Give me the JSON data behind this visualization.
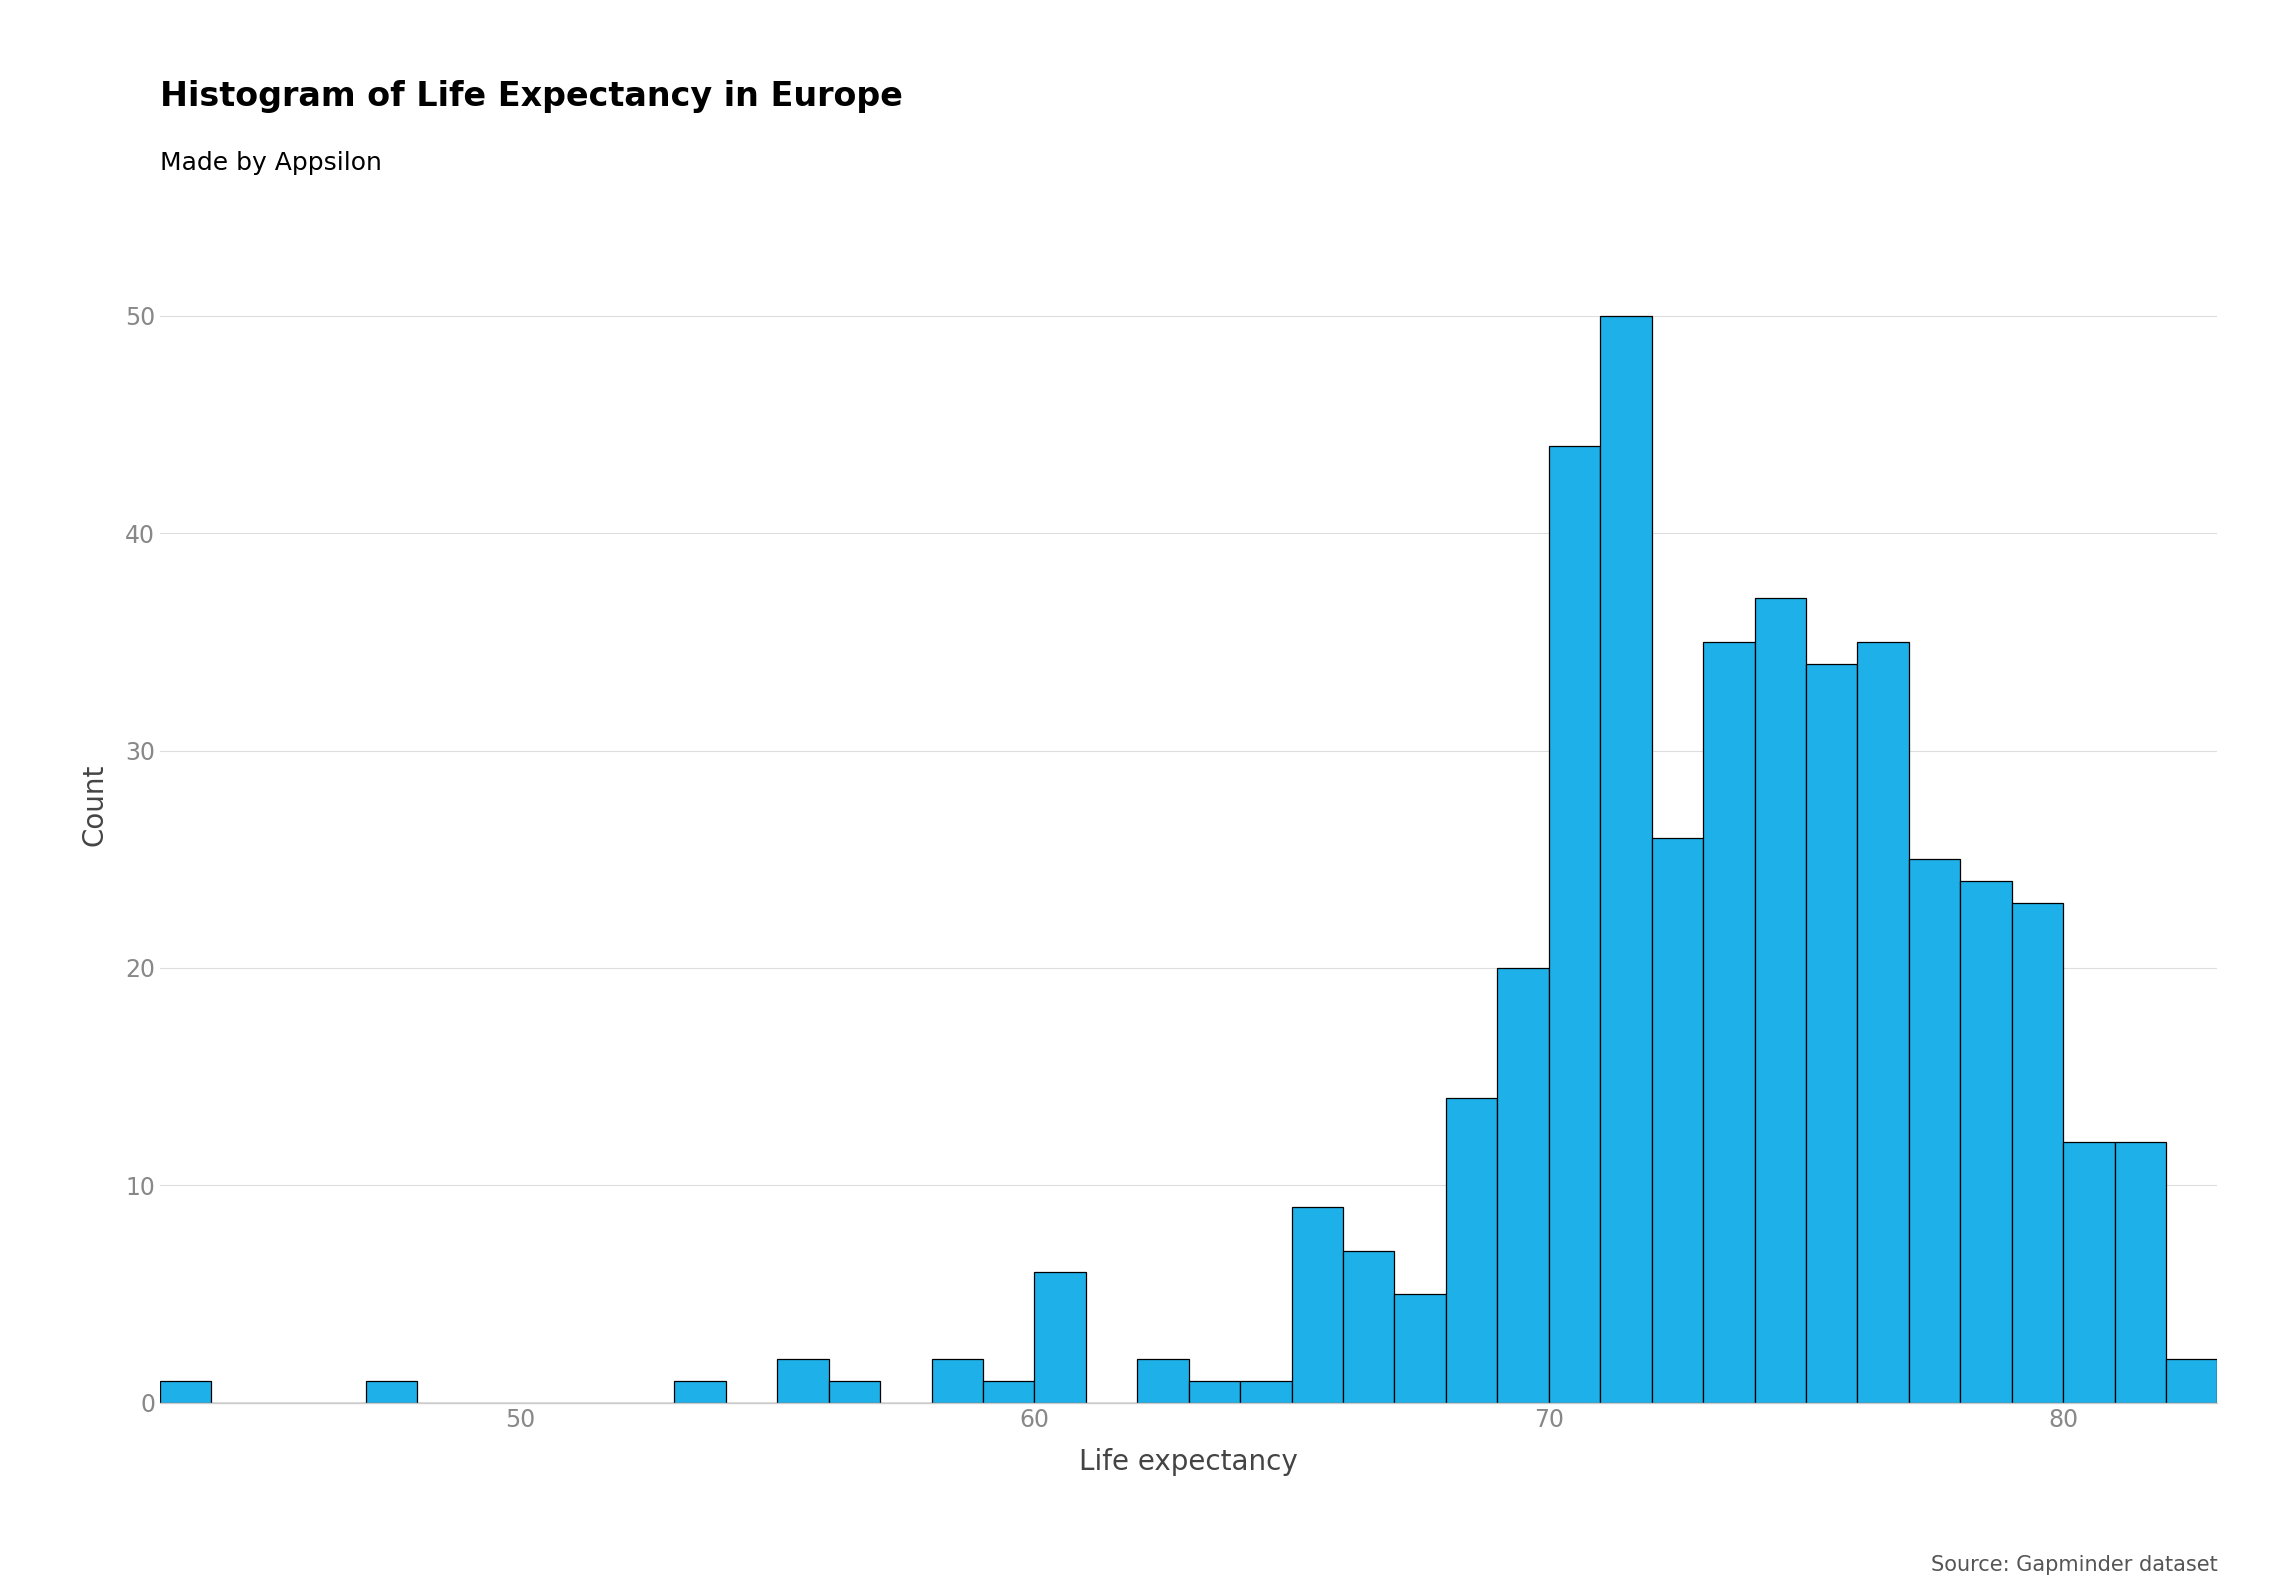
{
  "title": "Histogram of Life Expectancy in Europe",
  "subtitle": "Made by Appsilon",
  "caption": "Source: Gapminder dataset",
  "xlabel": "Life expectancy",
  "ylabel": "Count",
  "bar_color": "#1EB0E8",
  "bar_edgecolor": "#000000",
  "background_color": "#FFFFFF",
  "bin_edges": [
    43,
    44,
    45,
    46,
    47,
    48,
    49,
    50,
    51,
    52,
    53,
    54,
    55,
    56,
    57,
    58,
    59,
    60,
    61,
    62,
    63,
    64,
    65,
    66,
    67,
    68,
    69,
    70,
    71,
    72,
    73,
    74,
    75,
    76,
    77,
    78,
    79,
    80,
    81,
    82,
    83
  ],
  "counts": [
    1,
    0,
    0,
    0,
    1,
    0,
    0,
    0,
    0,
    0,
    1,
    0,
    2,
    1,
    0,
    2,
    1,
    6,
    0,
    2,
    1,
    1,
    9,
    7,
    5,
    14,
    20,
    44,
    50,
    26,
    35,
    37,
    34,
    35,
    25,
    24,
    23,
    12,
    12,
    2
  ],
  "xlim": [
    43,
    83
  ],
  "ylim": [
    0,
    55
  ],
  "xticks": [
    50,
    60,
    70,
    80
  ],
  "yticks": [
    0,
    10,
    20,
    30,
    40,
    50
  ],
  "title_fontsize": 24,
  "subtitle_fontsize": 18,
  "caption_fontsize": 15,
  "xlabel_fontsize": 20,
  "ylabel_fontsize": 20,
  "tick_fontsize": 17
}
